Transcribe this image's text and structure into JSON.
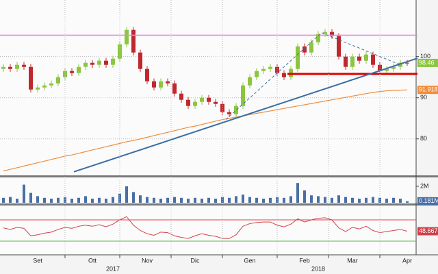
{
  "chart_data": [
    {
      "type": "candlestick",
      "up_color": "#8cc63f",
      "down_color": "#c0282d",
      "ylim": [
        71.3,
        112.1
      ],
      "yticks": [
        80,
        90,
        100
      ],
      "grid": true,
      "open": [
        97,
        97.5,
        97,
        98,
        97.5,
        92,
        92.5,
        93,
        93.5,
        95,
        96.5,
        96,
        97.5,
        98.5,
        98,
        99,
        98,
        99.5,
        103,
        106.5,
        101,
        97,
        94,
        92.5,
        94,
        93.5,
        91,
        89.5,
        88,
        89,
        90,
        89,
        88.5,
        86.5,
        86,
        88,
        93,
        95,
        96.5,
        97,
        97.5,
        96,
        95,
        97,
        102.5,
        101,
        103.5,
        105.5,
        106,
        105,
        100,
        97.5,
        100,
        99,
        100.5,
        98,
        96.5,
        97,
        97.5,
        98.5
      ],
      "high": [
        98.2,
        98.2,
        98.7,
        98.7,
        98.2,
        93.2,
        93.7,
        94.2,
        95.7,
        97.2,
        97.2,
        98.2,
        99.2,
        99.2,
        99.7,
        99.7,
        100.2,
        103.7,
        107.2,
        107.2,
        101.7,
        97.7,
        94.7,
        94.7,
        94.7,
        94.2,
        91.7,
        90.2,
        89.7,
        90.7,
        90.7,
        89.7,
        89.2,
        87.2,
        88.7,
        93.7,
        95.7,
        97.2,
        97.7,
        98.2,
        98.2,
        96.7,
        97.7,
        103.2,
        103.2,
        104.2,
        106.2,
        106.7,
        106.7,
        105.7,
        100.7,
        100.7,
        100.7,
        101.2,
        101.2,
        98.7,
        97.7,
        98.2,
        99.2,
        99.2
      ],
      "low": [
        96.3,
        96.3,
        96.3,
        96.8,
        91.3,
        91.3,
        91.8,
        92.3,
        92.8,
        94.3,
        95.3,
        95.3,
        96.8,
        97.3,
        97.3,
        97.3,
        97.3,
        98.8,
        102.3,
        100.3,
        96.3,
        93.3,
        91.8,
        91.8,
        92.8,
        90.3,
        88.8,
        87.3,
        87.3,
        88.3,
        88.3,
        87.8,
        85.8,
        85.3,
        85.3,
        87.3,
        92.3,
        94.3,
        95.8,
        96.3,
        95.3,
        94.3,
        94.3,
        96.3,
        100.3,
        100.3,
        102.8,
        104.8,
        104.3,
        99.3,
        96.8,
        96.8,
        98.3,
        98.3,
        97.3,
        95.8,
        95.8,
        96.3,
        96.8,
        97.76
      ],
      "close": [
        97.5,
        97,
        98,
        97.5,
        92,
        92.5,
        93,
        93.5,
        95,
        96.5,
        96,
        97.5,
        98.5,
        98,
        99,
        98,
        99.5,
        103,
        106.5,
        101,
        97,
        94,
        92.5,
        94,
        93.5,
        91,
        89.5,
        88,
        89,
        90,
        89,
        88.5,
        86.5,
        86,
        88,
        93,
        95,
        96.5,
        97,
        97.5,
        96,
        95,
        97,
        102.5,
        101,
        103.5,
        105.5,
        106,
        105,
        100,
        97.5,
        100,
        99,
        100.5,
        98,
        96.5,
        97,
        97.5,
        98.5,
        98.46
      ],
      "last_color": "#8cc63f",
      "moving_average": {
        "color": "#f08c3c",
        "values": [
          72.2,
          72.6,
          73.0,
          73.4,
          73.8,
          74.2,
          74.6,
          75.0,
          75.4,
          75.8,
          76.1,
          76.5,
          76.9,
          77.3,
          77.7,
          78.1,
          78.5,
          78.9,
          79.3,
          79.6,
          80.0,
          80.4,
          80.8,
          81.2,
          81.6,
          82.0,
          82.4,
          82.8,
          83.1,
          83.5,
          83.9,
          84.3,
          84.7,
          85.0,
          85.3,
          85.6,
          85.9,
          86.2,
          86.5,
          86.8,
          87.1,
          87.4,
          87.7,
          88.0,
          88.3,
          88.6,
          88.9,
          89.2,
          89.5,
          89.8,
          90.1,
          90.4,
          90.7,
          91.0,
          91.3,
          91.5,
          91.7,
          91.8,
          91.85,
          91.918
        ]
      },
      "lines": [
        {
          "color": "#e08ce0",
          "width": 1.5,
          "dashed": false,
          "x": [
            -0.5,
            60.5
          ],
          "y": [
            105.2,
            105.2
          ]
        },
        {
          "color": "#dd0000",
          "width": 3,
          "dashed": false,
          "x": [
            41.5,
            60.5
          ],
          "y": [
            95.8,
            95.8
          ]
        },
        {
          "color": "#3a6ea5",
          "width": 2,
          "dashed": false,
          "x": [
            10.3,
            60.5
          ],
          "y": [
            72,
            99.6
          ]
        },
        {
          "color": "#3a6ea5",
          "width": 1,
          "dashed": true,
          "x": [
            32.5,
            46.5
          ],
          "y": [
            84.7,
            105.8
          ]
        },
        {
          "color": "#3a6ea5",
          "width": 1,
          "dashed": true,
          "x": [
            46.5,
            58
          ],
          "y": [
            105.8,
            98
          ]
        }
      ]
    },
    {
      "type": "bar",
      "color": "#4a6fa5",
      "ylim": [
        0,
        2.83
      ],
      "yticks": [
        {
          "value": 2,
          "label": "2M"
        }
      ],
      "last_value_label": "0.181M",
      "values": [
        0.6,
        0.7,
        0.5,
        2.2,
        1.2,
        0.8,
        0.6,
        0.5,
        0.6,
        0.7,
        0.5,
        0.6,
        0.8,
        0.5,
        0.6,
        0.5,
        0.7,
        1.1,
        2.0,
        1.3,
        0.9,
        0.7,
        0.6,
        0.5,
        0.6,
        0.7,
        0.6,
        0.5,
        0.6,
        0.5,
        0.6,
        0.5,
        0.7,
        0.6,
        0.8,
        1.0,
        0.7,
        0.6,
        0.5,
        0.6,
        0.7,
        0.6,
        0.8,
        2.4,
        1.5,
        0.9,
        0.8,
        0.7,
        0.6,
        0.9,
        0.7,
        0.6,
        0.5,
        0.6,
        0.7,
        0.6,
        0.5,
        0.6,
        0.5,
        0.181
      ]
    },
    {
      "type": "line",
      "color": "#d0424a",
      "ylim": [
        6.8,
        94.5
      ],
      "levels": [
        {
          "value": 70,
          "color": "#e04040"
        },
        {
          "value": 30,
          "color": "#55bb44"
        }
      ],
      "values": [
        55,
        52,
        56,
        54,
        40,
        42,
        45,
        47,
        52,
        56,
        54,
        58,
        60,
        58,
        61,
        57,
        62,
        70,
        76,
        60,
        50,
        44,
        41,
        47,
        46,
        40,
        37,
        35,
        40,
        44,
        41,
        39,
        35,
        35,
        42,
        58,
        63,
        65,
        66,
        66,
        60,
        57,
        62,
        72,
        66,
        70,
        73,
        74,
        70,
        55,
        48,
        56,
        53,
        58,
        50,
        46,
        48,
        50,
        52,
        48.6677
      ],
      "categories": [
        null,
        null,
        null,
        null,
        null,
        "Set",
        null,
        null,
        null,
        null,
        null,
        null,
        null,
        "Ott",
        null,
        null,
        null,
        null,
        null,
        null,
        null,
        "Nov",
        null,
        null,
        null,
        null,
        null,
        null,
        "Dic",
        null,
        null,
        null,
        null,
        null,
        null,
        null,
        "Gen",
        null,
        null,
        null,
        null,
        null,
        null,
        null,
        "Feb",
        null,
        null,
        null,
        null,
        null,
        null,
        "Mar",
        null,
        null,
        null,
        null,
        null,
        null,
        null,
        "Apr"
      ],
      "year_categories": [
        null,
        null,
        null,
        null,
        null,
        null,
        null,
        null,
        null,
        null,
        null,
        null,
        null,
        null,
        null,
        null,
        "2017",
        null,
        null,
        null,
        null,
        null,
        null,
        null,
        null,
        null,
        null,
        null,
        null,
        null,
        null,
        null,
        null,
        null,
        null,
        null,
        null,
        null,
        null,
        null,
        null,
        null,
        null,
        null,
        null,
        null,
        "2018",
        null,
        null,
        null,
        null,
        null,
        null,
        null,
        null,
        null,
        null,
        null,
        null,
        null
      ]
    }
  ]
}
